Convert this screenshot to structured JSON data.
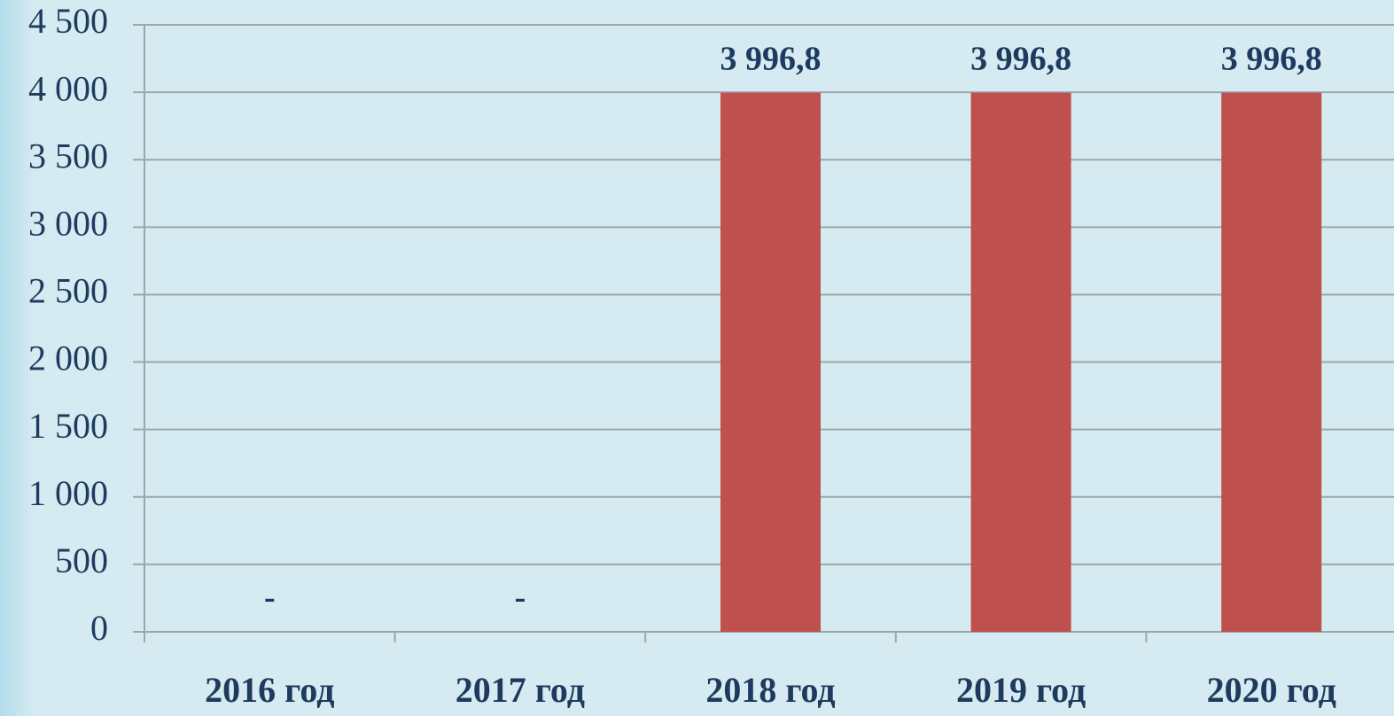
{
  "chart_data": {
    "type": "bar",
    "categories": [
      "2016 год",
      "2017 год",
      "2018 год",
      "2019 год",
      "2020 год"
    ],
    "values": [
      0,
      0,
      3996.8,
      3996.8,
      3996.8
    ],
    "value_labels": [
      "-",
      "-",
      "3 996,8",
      "3 996,8",
      "3 996,8"
    ],
    "color": "#c0504d",
    "ylim": [
      0,
      4500
    ],
    "yticks": [
      0,
      500,
      {
        "value": 1000,
        "label": "1 000"
      },
      {
        "value": 1500,
        "label": "1 500"
      },
      {
        "value": 2000,
        "label": "2 000"
      },
      {
        "value": 2500,
        "label": "2 500"
      },
      {
        "value": 3000,
        "label": "3 000"
      },
      {
        "value": 3500,
        "label": "3 500"
      },
      {
        "value": 4000,
        "label": "4 000"
      },
      {
        "value": 4500,
        "label": "4 500"
      }
    ],
    "grid": true
  }
}
